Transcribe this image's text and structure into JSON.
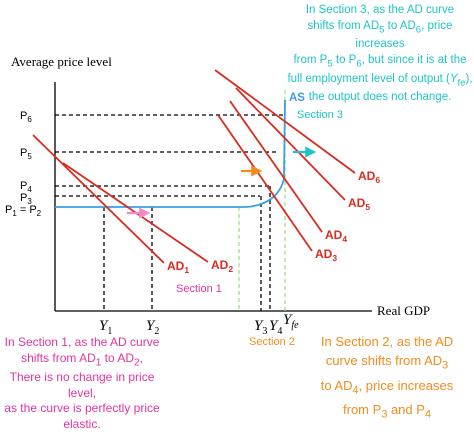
{
  "axes": {
    "y_label": "Average price level",
    "x_label": "Real GDP"
  },
  "price_levels": {
    "p6": "P",
    "p6_sub": "6",
    "p5": "P",
    "p5_sub": "5",
    "p4": "P",
    "p4_sub": "4",
    "p3": "P",
    "p3_sub": "3",
    "p12": "P",
    "p12_sub1": "1",
    "p12_eq": " = P",
    "p12_sub2": "2"
  },
  "output_levels": {
    "y1": "Y",
    "y1_sub": "1",
    "y2": "Y",
    "y2_sub": "2",
    "y3": "Y",
    "y3_sub": "3",
    "y4": "Y",
    "y4_sub": "4",
    "yfe": "Y",
    "yfe_sub": "fe"
  },
  "curves": {
    "as": "AS",
    "ad1": "AD",
    "ad1_sub": "1",
    "ad2": "AD",
    "ad2_sub": "2",
    "ad3": "AD",
    "ad3_sub": "3",
    "ad4": "AD",
    "ad4_sub": "4",
    "ad5": "AD",
    "ad5_sub": "5",
    "ad6": "AD",
    "ad6_sub": "6"
  },
  "sections": {
    "s1": "Section 1",
    "s2": "Section 2",
    "s3": "Section 3"
  },
  "notes": {
    "cyan": {
      "l1": "In Section 3, as the AD curve",
      "l2a": "shifts from AD",
      "l2s1": "5",
      "l2b": " to AD",
      "l2s2": "6",
      "l2c": ", price increases",
      "l3a": "from P",
      "l3s1": "5",
      "l3b": " to P",
      "l3s2": "6",
      "l3c": ", but since it is at the",
      "l4a": "full employment level of output (",
      "l4y": "Y",
      "l4s": "fe",
      "l4c": "),",
      "l5": "the output does not change."
    },
    "pink": {
      "l1": "In Section 1, as the AD curve",
      "l2a": "shifts from AD",
      "l2s1": "1",
      "l2b": " to AD",
      "l2s2": "2",
      "l2c": ",",
      "l3": "There is no change in price level,",
      "l4": "as the curve is perfectly price",
      "l5": "elastic."
    },
    "orange": {
      "l1": "In Section 2, as the AD",
      "l2a": "curve shifts from AD",
      "l2s": "3",
      "l3a": "to AD",
      "l3s": "4",
      "l3b": ", price increases",
      "l4a": "from P",
      "l4s1": "3",
      "l4b": " and P",
      "l4s2": "4"
    }
  },
  "colors": {
    "ad": "#d92b1f",
    "as": "#3a9ee6",
    "section3": "#1ec5c5",
    "section1": "#e0359e",
    "section2": "#f28c1c",
    "guide_green": "#9be37d",
    "axis": "#000000"
  }
}
